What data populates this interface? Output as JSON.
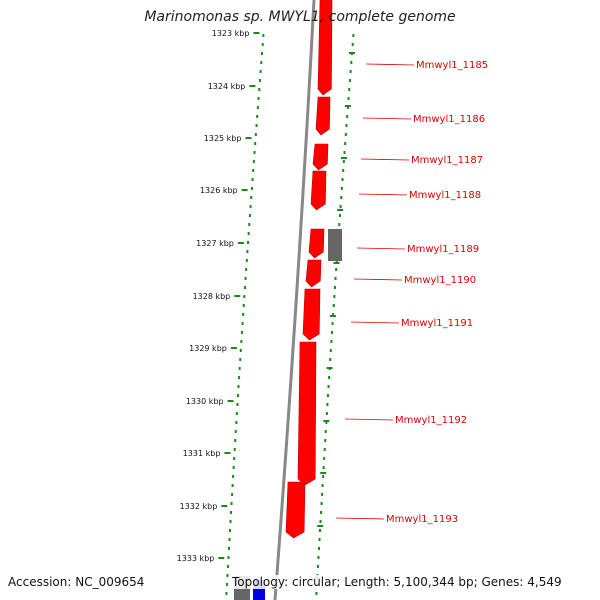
{
  "title": "Marinomonas sp. MWYL1, complete genome",
  "footer": {
    "accession": "Accession: NC_009654",
    "topology": "Topology: circular; Length: 5,100,344 bp; Genes: 4,549"
  },
  "colors": {
    "gene_forward": "#ff0000",
    "gene_other": "#666666",
    "gene_blue": "#0000dd",
    "ruler": "#1a8a1a",
    "backbone": "#888888",
    "label": "#e00000"
  },
  "ticks": [
    "1323 kbp",
    "1324 kbp",
    "1325 kbp",
    "1326 kbp",
    "1327 kbp",
    "1328 kbp",
    "1329 kbp",
    "1330 kbp",
    "1331 kbp",
    "1332 kbp",
    "1333 kbp"
  ],
  "genes": [
    {
      "label": "Mmwyl1_1185"
    },
    {
      "label": "Mmwyl1_1186"
    },
    {
      "label": "Mmwyl1_1187"
    },
    {
      "label": "Mmwyl1_1188"
    },
    {
      "label": "Mmwyl1_1189"
    },
    {
      "label": "Mmwyl1_1190"
    },
    {
      "label": "Mmwyl1_1191"
    },
    {
      "label": "Mmwyl1_1192"
    },
    {
      "label": "Mmwyl1_1193"
    }
  ]
}
